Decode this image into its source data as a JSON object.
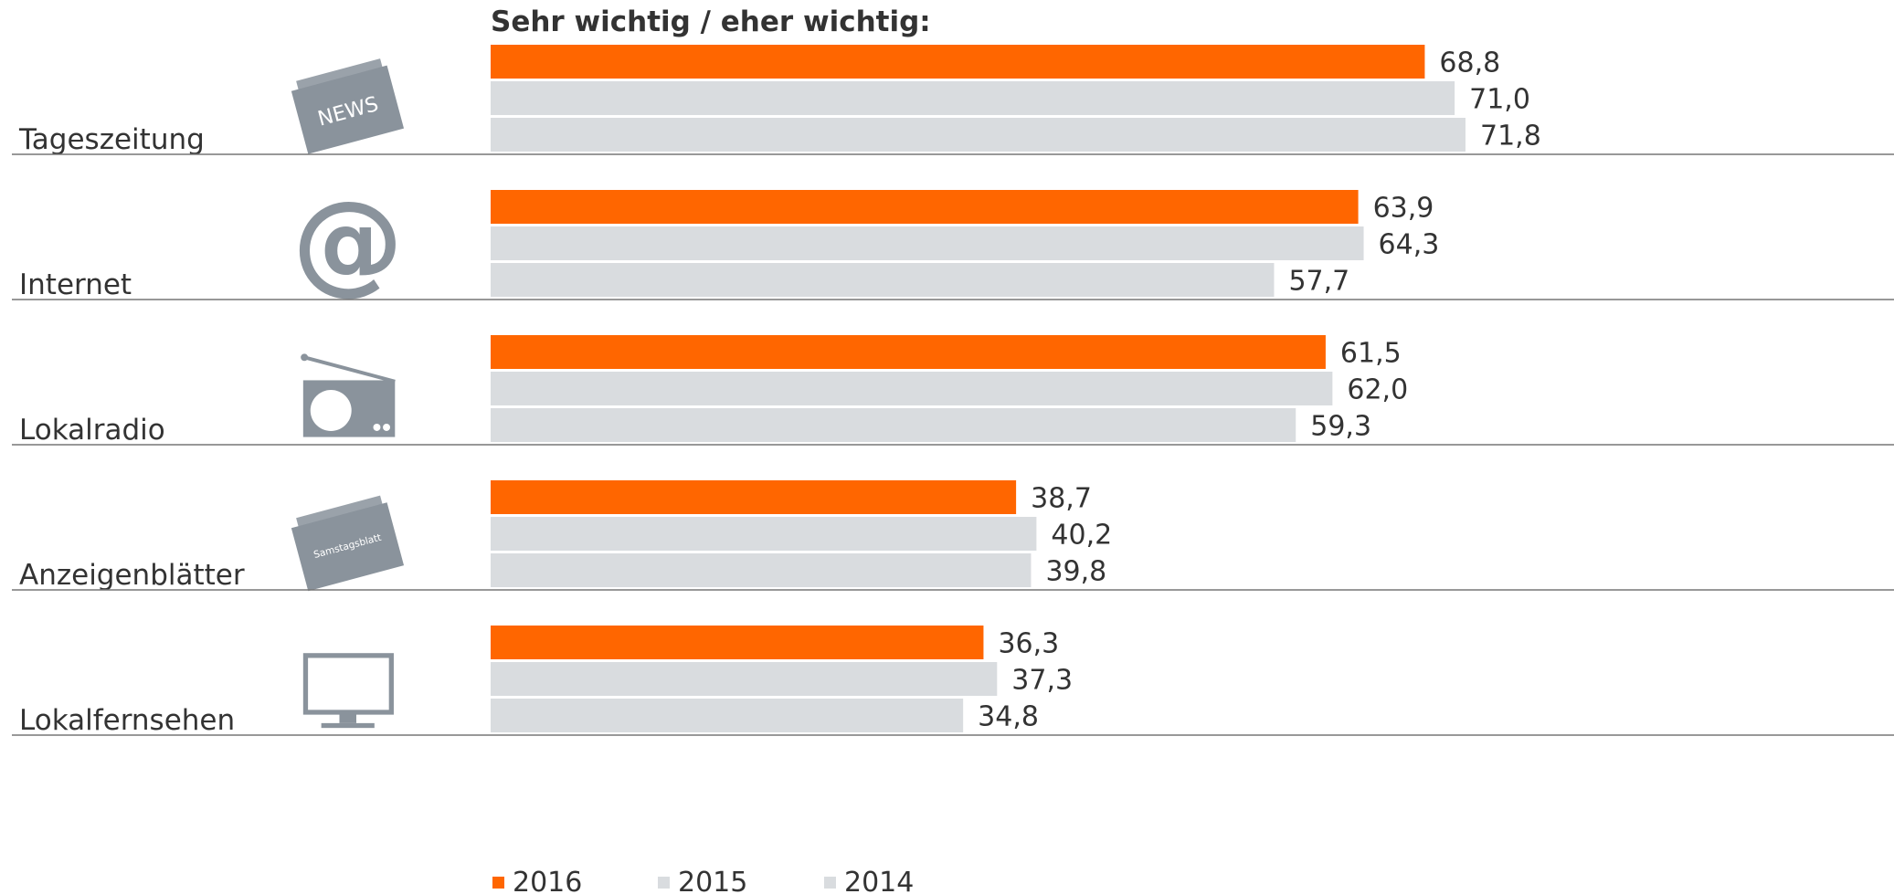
{
  "chart_data": {
    "type": "bar",
    "orientation": "horizontal",
    "title": "Sehr wichtig / eher wichtig:",
    "categories": [
      "Tageszeitung",
      "Internet",
      "Lokalradio",
      "Anzeigenblätter",
      "Lokalfernsehen"
    ],
    "series": [
      {
        "name": "2016",
        "color": "#ff6600",
        "values": [
          68.8,
          63.9,
          61.5,
          38.7,
          36.3
        ],
        "value_labels": [
          "68,8",
          "63,9",
          "61,5",
          "38,7",
          "36,3"
        ]
      },
      {
        "name": "2015",
        "color": "#d9dcdf",
        "values": [
          71.0,
          64.3,
          62.0,
          40.2,
          37.3
        ],
        "value_labels": [
          "71,0",
          "64,3",
          "62,0",
          "40,2",
          "37,3"
        ]
      },
      {
        "name": "2014",
        "color": "#d9dcdf",
        "values": [
          71.8,
          57.7,
          59.3,
          39.8,
          34.8
        ],
        "value_labels": [
          "71,8",
          "57,7",
          "59,3",
          "39,8",
          "34,8"
        ]
      }
    ],
    "legend": "bottom"
  },
  "icons": {
    "news": "NEWS",
    "samstagsblatt": "Samstagsblatt"
  }
}
